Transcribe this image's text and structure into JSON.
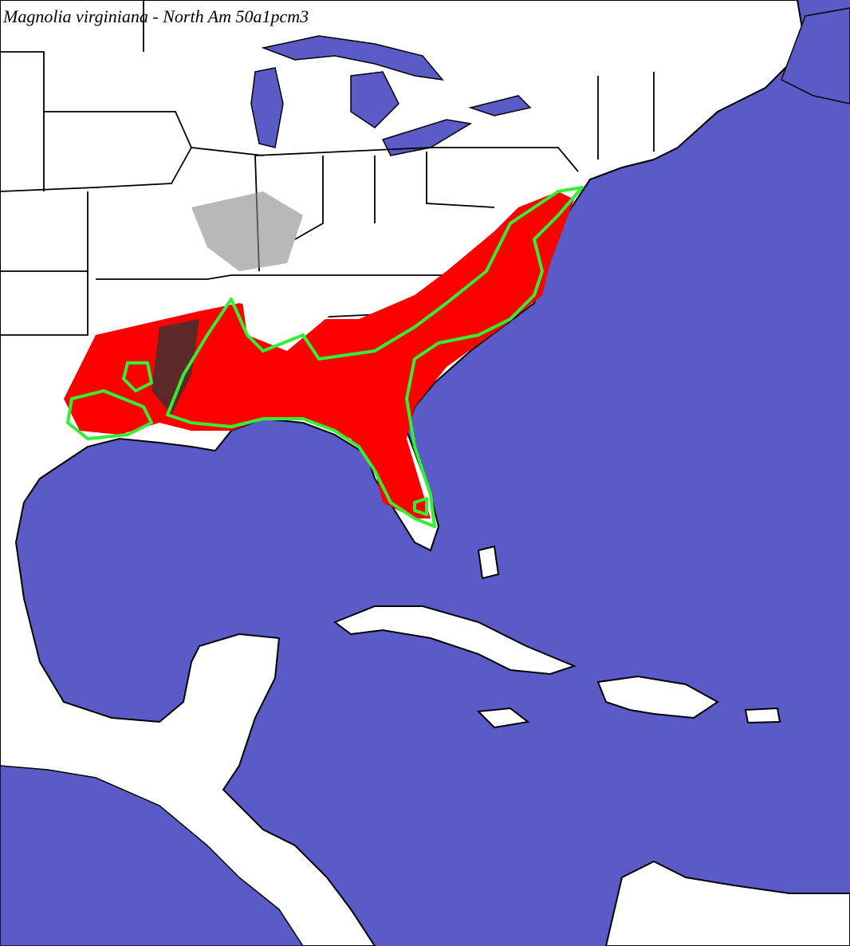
{
  "title": "Magnolia virginiana - North Am 50a1pcm3"
}
